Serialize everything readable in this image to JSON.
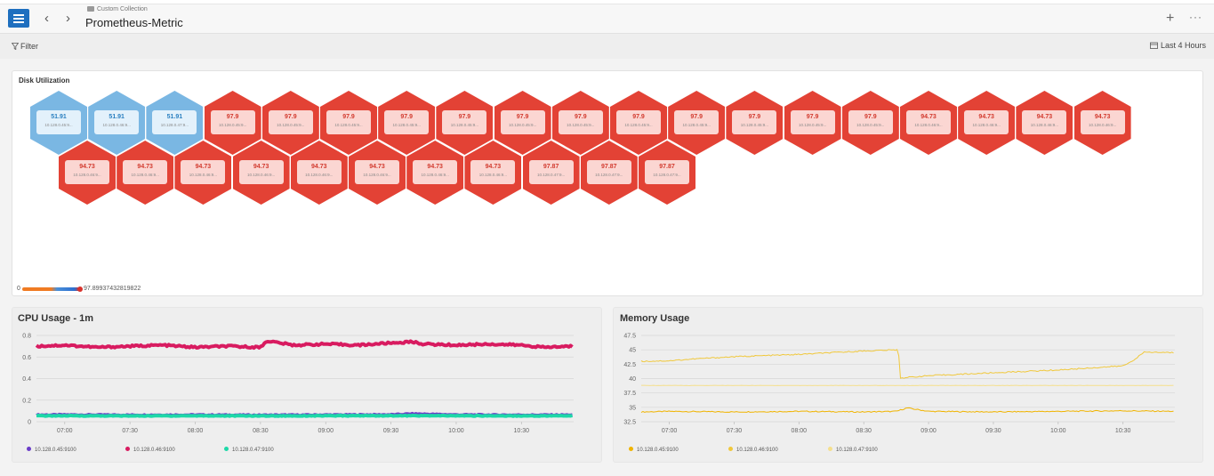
{
  "header": {
    "breadcrumb": "Custom Collection",
    "title": "Prometheus-Metric",
    "menu_icon": "hamburger-icon",
    "add_symbol": "+",
    "more_symbol": "···",
    "back_symbol": "‹",
    "forward_symbol": "›"
  },
  "toolbar": {
    "filter_label": "Filter",
    "time_range": "Last 4 Hours"
  },
  "disk_panel": {
    "title": "Disk Utilization",
    "legend_min": "0",
    "legend_max": "97.89937432819822",
    "colors": {
      "high": "#e34235",
      "low": "#7ab7e3"
    },
    "row1": [
      {
        "value": "51.91",
        "label": "10.128.0.45:9...",
        "status": "low"
      },
      {
        "value": "51.91",
        "label": "10.128.0.46:9...",
        "status": "low"
      },
      {
        "value": "51.91",
        "label": "10.128.0.47:9...",
        "status": "low"
      },
      {
        "value": "97.9",
        "label": "10.128.0.45:9...",
        "status": "high"
      },
      {
        "value": "97.9",
        "label": "10.128.0.45:9...",
        "status": "high"
      },
      {
        "value": "97.9",
        "label": "10.128.0.45:9...",
        "status": "high"
      },
      {
        "value": "97.9",
        "label": "10.128.0.45:9...",
        "status": "high"
      },
      {
        "value": "97.9",
        "label": "10.128.0.45:9...",
        "status": "high"
      },
      {
        "value": "97.9",
        "label": "10.128.0.45:9...",
        "status": "high"
      },
      {
        "value": "97.9",
        "label": "10.128.0.45:9...",
        "status": "high"
      },
      {
        "value": "97.9",
        "label": "10.128.0.45:9...",
        "status": "high"
      },
      {
        "value": "97.9",
        "label": "10.128.0.45:9...",
        "status": "high"
      },
      {
        "value": "97.9",
        "label": "10.128.0.45:9...",
        "status": "high"
      },
      {
        "value": "97.9",
        "label": "10.128.0.45:9...",
        "status": "high"
      },
      {
        "value": "97.9",
        "label": "10.128.0.45:9...",
        "status": "high"
      },
      {
        "value": "94.73",
        "label": "10.128.0.46:9...",
        "status": "high"
      },
      {
        "value": "94.73",
        "label": "10.128.0.46:9...",
        "status": "high"
      },
      {
        "value": "94.73",
        "label": "10.128.0.46:9...",
        "status": "high"
      },
      {
        "value": "94.73",
        "label": "10.128.0.46:9...",
        "status": "high"
      }
    ],
    "row2": [
      {
        "value": "94.73",
        "label": "10.128.0.46:9...",
        "status": "high"
      },
      {
        "value": "94.73",
        "label": "10.128.0.46:9...",
        "status": "high"
      },
      {
        "value": "94.73",
        "label": "10.128.0.46:9...",
        "status": "high"
      },
      {
        "value": "94.73",
        "label": "10.128.0.46:9...",
        "status": "high"
      },
      {
        "value": "94.73",
        "label": "10.128.0.46:9...",
        "status": "high"
      },
      {
        "value": "94.73",
        "label": "10.128.0.46:9...",
        "status": "high"
      },
      {
        "value": "94.73",
        "label": "10.128.0.46:9...",
        "status": "high"
      },
      {
        "value": "94.73",
        "label": "10.128.0.46:9...",
        "status": "high"
      },
      {
        "value": "97.87",
        "label": "10.128.0.47:9...",
        "status": "high"
      },
      {
        "value": "97.87",
        "label": "10.128.0.47:9...",
        "status": "high"
      },
      {
        "value": "97.87",
        "label": "10.128.0.47:9...",
        "status": "high"
      }
    ]
  },
  "chart_data": [
    {
      "type": "line",
      "title": "CPU Usage - 1m",
      "xlabel": "",
      "ylabel": "",
      "x_ticks": [
        "07:00",
        "07:30",
        "08:00",
        "08:30",
        "09:00",
        "09:30",
        "10:00",
        "10:30"
      ],
      "y_ticks": [
        "0",
        "0.2",
        "0.4",
        "0.6",
        "0.8"
      ],
      "ylim": [
        0,
        0.8
      ],
      "x_range": [
        "06:47",
        "10:54"
      ],
      "grid": true,
      "legend_position": "bottom-left",
      "series": [
        {
          "name": "10.128.0.45:9100",
          "color": "#6a3dc9",
          "x": [
            "06:47",
            "07:00",
            "07:30",
            "08:00",
            "08:30",
            "09:00",
            "09:30",
            "09:40",
            "10:00",
            "10:30",
            "10:54"
          ],
          "values": [
            0.065,
            0.066,
            0.064,
            0.065,
            0.063,
            0.065,
            0.067,
            0.075,
            0.066,
            0.064,
            0.065
          ]
        },
        {
          "name": "10.128.0.46:9100",
          "color": "#d81b60",
          "x": [
            "06:47",
            "07:00",
            "07:15",
            "07:30",
            "07:45",
            "08:00",
            "08:15",
            "08:30",
            "08:33",
            "08:45",
            "09:00",
            "09:15",
            "09:30",
            "09:40",
            "09:45",
            "10:00",
            "10:15",
            "10:30",
            "10:40",
            "10:54"
          ],
          "values": [
            0.7,
            0.71,
            0.69,
            0.7,
            0.71,
            0.69,
            0.7,
            0.69,
            0.75,
            0.71,
            0.72,
            0.71,
            0.73,
            0.74,
            0.72,
            0.71,
            0.72,
            0.71,
            0.69,
            0.7
          ]
        },
        {
          "name": "10.128.0.47:9100",
          "color": "#1ed8a8",
          "x": [
            "06:47",
            "07:00",
            "07:30",
            "08:00",
            "08:30",
            "09:00",
            "09:30",
            "10:00",
            "10:30",
            "10:54"
          ],
          "values": [
            0.055,
            0.055,
            0.054,
            0.055,
            0.054,
            0.055,
            0.056,
            0.055,
            0.054,
            0.055
          ]
        }
      ]
    },
    {
      "type": "line",
      "title": "Memory Usage",
      "xlabel": "",
      "ylabel": "",
      "x_ticks": [
        "07:00",
        "07:30",
        "08:00",
        "08:30",
        "09:00",
        "09:30",
        "10:00",
        "10:30"
      ],
      "y_ticks": [
        "32.5",
        "35",
        "37.5",
        "40",
        "42.5",
        "45",
        "47.5"
      ],
      "ylim": [
        32.5,
        47.5
      ],
      "x_range": [
        "06:47",
        "10:54"
      ],
      "grid": true,
      "legend_position": "bottom-left",
      "series": [
        {
          "name": "10.128.0.45:9100",
          "color": "#f0b400",
          "x": [
            "06:47",
            "07:00",
            "07:30",
            "08:00",
            "08:30",
            "08:45",
            "08:50",
            "09:00",
            "09:30",
            "10:00",
            "10:30",
            "10:54"
          ],
          "values": [
            34.2,
            34.3,
            34.2,
            34.3,
            34.2,
            34.3,
            34.9,
            34.3,
            34.2,
            34.3,
            34.4,
            34.3
          ]
        },
        {
          "name": "10.128.0.46:9100",
          "color": "#f0c83c",
          "x": [
            "06:47",
            "07:00",
            "07:15",
            "07:30",
            "08:00",
            "08:30",
            "08:46",
            "08:47",
            "09:00",
            "09:30",
            "10:00",
            "10:30",
            "10:34",
            "10:40",
            "10:54"
          ],
          "values": [
            43.0,
            43.1,
            43.5,
            43.8,
            44.2,
            44.8,
            45.0,
            40.1,
            40.5,
            41.0,
            41.5,
            42.2,
            43.0,
            44.6,
            44.5
          ]
        },
        {
          "name": "10.128.0.47:9100",
          "color": "#f5df8c",
          "x": [
            "06:47",
            "07:00",
            "07:30",
            "08:00",
            "08:30",
            "09:00",
            "09:30",
            "10:00",
            "10:30",
            "10:54"
          ],
          "values": [
            38.8,
            38.8,
            38.8,
            38.8,
            38.8,
            38.8,
            38.8,
            38.8,
            38.8,
            38.8
          ]
        }
      ]
    }
  ]
}
